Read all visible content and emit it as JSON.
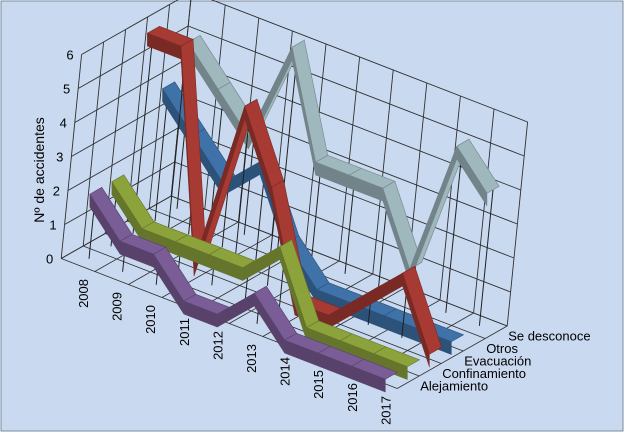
{
  "chart_data": {
    "type": "line",
    "subtype": "3d-ribbon",
    "title": "",
    "ylabel": "Nº de accidentes",
    "ylim": [
      0,
      6
    ],
    "yticks": [
      0,
      1,
      2,
      3,
      4,
      5,
      6
    ],
    "categories": [
      "2008",
      "2009",
      "2010",
      "2011",
      "2012",
      "2013",
      "2014",
      "2015",
      "2016",
      "2017"
    ],
    "series": [
      {
        "name": "Alejamiento",
        "color": "#7a5c96",
        "values": [
          2,
          1,
          1,
          0,
          0,
          1,
          0,
          0,
          0,
          0
        ]
      },
      {
        "name": "Confinamiento",
        "color": "#8ca33c",
        "values": [
          2,
          1,
          1,
          1,
          1,
          2,
          0,
          0,
          0,
          0
        ]
      },
      {
        "name": "Evacuación",
        "color": "#a83a34",
        "values": [
          6,
          6,
          0,
          5,
          3,
          0,
          0,
          1,
          2,
          0
        ]
      },
      {
        "name": "Otros",
        "color": "#3f72a8",
        "values": [
          4,
          3,
          2,
          3,
          1,
          0,
          0,
          0,
          0,
          0
        ]
      },
      {
        "name": "Se desconoce",
        "color": "#9fb8be",
        "values": [
          5,
          4,
          3,
          6,
          3,
          3,
          3,
          1,
          5,
          4
        ]
      }
    ],
    "background_color": "#c9d9f0",
    "grid": true,
    "legend": "depth-axis"
  }
}
